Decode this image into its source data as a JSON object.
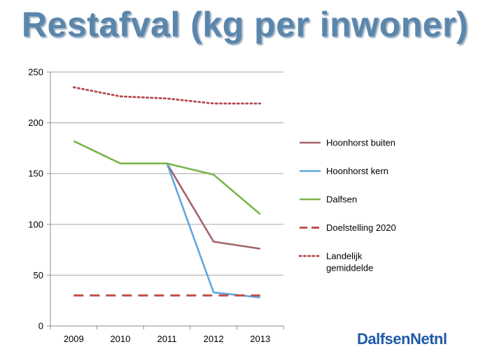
{
  "title": "Restafval (kg per inwoner)",
  "logo": {
    "main": "DalfsenNet",
    "tld": "nl"
  },
  "chart_data": {
    "type": "line",
    "title": "Restafval (kg per inwoner)",
    "xlabel": "",
    "ylabel": "",
    "categories": [
      "2009",
      "2010",
      "2011",
      "2012",
      "2013"
    ],
    "ylim": [
      0,
      250
    ],
    "yticks": [
      0,
      50,
      100,
      150,
      200,
      250
    ],
    "grid": true,
    "legend_position": "right",
    "series": [
      {
        "name": "Hoonhorst buiten",
        "values": [
          null,
          null,
          160,
          83,
          76
        ],
        "color": "#a4636a",
        "style": "solid"
      },
      {
        "name": "Hoonhorst kern",
        "values": [
          null,
          null,
          160,
          33,
          28
        ],
        "color": "#5fa8de",
        "style": "solid"
      },
      {
        "name": "Dalfsen",
        "values": [
          182,
          160,
          160,
          149,
          110
        ],
        "color": "#7ab648",
        "style": "solid"
      },
      {
        "name": "Doelstelling 2020",
        "values": [
          30,
          30,
          30,
          30,
          30
        ],
        "color": "#c0504d",
        "style": "dashed"
      },
      {
        "name": "Landelijk gemiddelde",
        "values": [
          235,
          226,
          224,
          219,
          219
        ],
        "color": "#b5494b",
        "style": "dotted"
      }
    ]
  }
}
